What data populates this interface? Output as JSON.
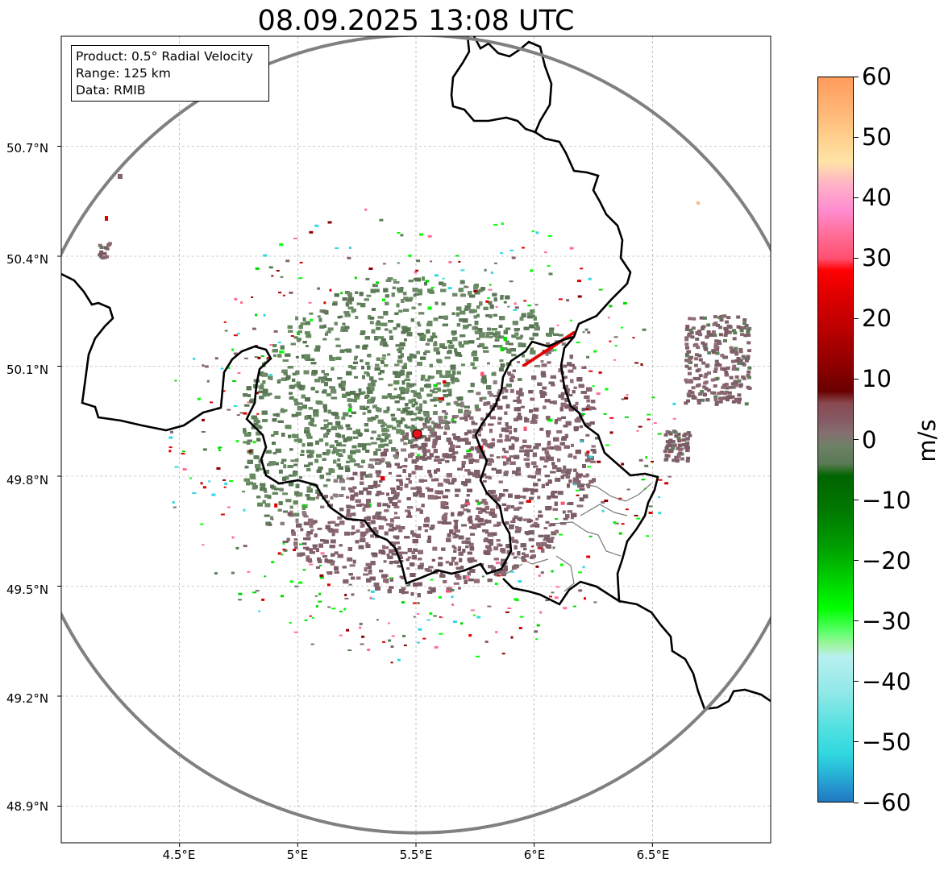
{
  "title": "08.09.2025 13:08 UTC",
  "info": {
    "product": "Product: 0.5° Radial Velocity",
    "range": "Range: 125 km",
    "data": "Data: RMIB"
  },
  "map": {
    "lon_range": [
      4.0,
      7.0
    ],
    "lat_range": [
      48.8,
      51.0
    ],
    "lon_ticks": [
      "4.5°E",
      "5°E",
      "5.5°E",
      "6°E",
      "6.5°E"
    ],
    "lat_ticks": [
      "50.7°N",
      "50.4°N",
      "50.1°N",
      "49.8°N",
      "49.5°N",
      "49.2°N",
      "48.9°N"
    ],
    "radar_site": {
      "lon": 5.505,
      "lat": 49.915
    },
    "range_km": 125,
    "colors": {
      "approaching_green": "#5e7d5a",
      "receding_mauve": "#85636d",
      "neutral_grey": "#8a7c7c",
      "range_ring": "#808080",
      "border": "#000000",
      "site_marker": "#e8131c"
    }
  },
  "colorbar": {
    "label": "m/s",
    "ticks": [
      "60",
      "50",
      "40",
      "30",
      "20",
      "10",
      "0",
      "−10",
      "−20",
      "−30",
      "−40",
      "−50",
      "−60"
    ],
    "min": -60,
    "max": 60,
    "stops": [
      {
        "v": 60,
        "c": "#ff9c5c"
      },
      {
        "v": 54,
        "c": "#ffb878"
      },
      {
        "v": 50,
        "c": "#ffd08c"
      },
      {
        "v": 46,
        "c": "#ffe4a8"
      },
      {
        "v": 44,
        "c": "#ffc8b8"
      },
      {
        "v": 42,
        "c": "#ffb0c8"
      },
      {
        "v": 38,
        "c": "#ff8cd0"
      },
      {
        "v": 34,
        "c": "#ff6e98"
      },
      {
        "v": 30,
        "c": "#ff5070"
      },
      {
        "v": 28,
        "c": "#ff0000"
      },
      {
        "v": 24,
        "c": "#e00000"
      },
      {
        "v": 18,
        "c": "#b80000"
      },
      {
        "v": 12,
        "c": "#8c0000"
      },
      {
        "v": 8,
        "c": "#6a0000"
      },
      {
        "v": 6,
        "c": "#8a4a50"
      },
      {
        "v": 3,
        "c": "#855c66"
      },
      {
        "v": 1,
        "c": "#857070"
      },
      {
        "v": -1,
        "c": "#6e8066"
      },
      {
        "v": -4,
        "c": "#5a7a55"
      },
      {
        "v": -6,
        "c": "#006400"
      },
      {
        "v": -12,
        "c": "#007a00"
      },
      {
        "v": -18,
        "c": "#00a000"
      },
      {
        "v": -24,
        "c": "#00d800"
      },
      {
        "v": -28,
        "c": "#00ff00"
      },
      {
        "v": -32,
        "c": "#60ff70"
      },
      {
        "v": -34,
        "c": "#a0f4a0"
      },
      {
        "v": -36,
        "c": "#b8f0f0"
      },
      {
        "v": -42,
        "c": "#90e8e8"
      },
      {
        "v": -48,
        "c": "#50e0e0"
      },
      {
        "v": -52,
        "c": "#30d8e0"
      },
      {
        "v": -55,
        "c": "#28b8d8"
      },
      {
        "v": -58,
        "c": "#2490cc"
      },
      {
        "v": -60,
        "c": "#2078c0"
      }
    ]
  }
}
